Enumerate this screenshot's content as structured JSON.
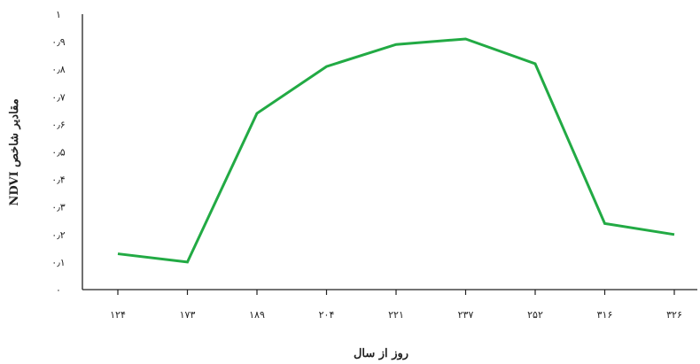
{
  "chart_data": {
    "type": "line",
    "title": "",
    "xlabel": "روز از سال",
    "ylabel": "مقادیر شاخص NDVI",
    "categories": [
      "۱۲۴",
      "۱۷۳",
      "۱۸۹",
      "۲۰۴",
      "۲۲۱",
      "۲۳۷",
      "۲۵۲",
      "۳۱۶",
      "۳۲۶"
    ],
    "series": [
      {
        "name": "",
        "color": "#22aa44",
        "values": [
          0.13,
          0.1,
          0.64,
          0.81,
          0.89,
          0.91,
          0.82,
          0.24,
          0.2
        ]
      }
    ],
    "ylim": [
      0,
      1
    ],
    "y_ticks": [
      0,
      0.1,
      0.2,
      0.3,
      0.4,
      0.5,
      0.6,
      0.7,
      0.8,
      0.9,
      1
    ],
    "y_tick_labels": [
      "۰",
      "۰٫۱",
      "۰٫۲",
      "۰٫۳",
      "۰٫۴",
      "۰٫۵",
      "۰٫۶",
      "۰٫۷",
      "۰٫۸",
      "۰٫۹",
      "۱"
    ],
    "grid": false,
    "legend": "none"
  }
}
